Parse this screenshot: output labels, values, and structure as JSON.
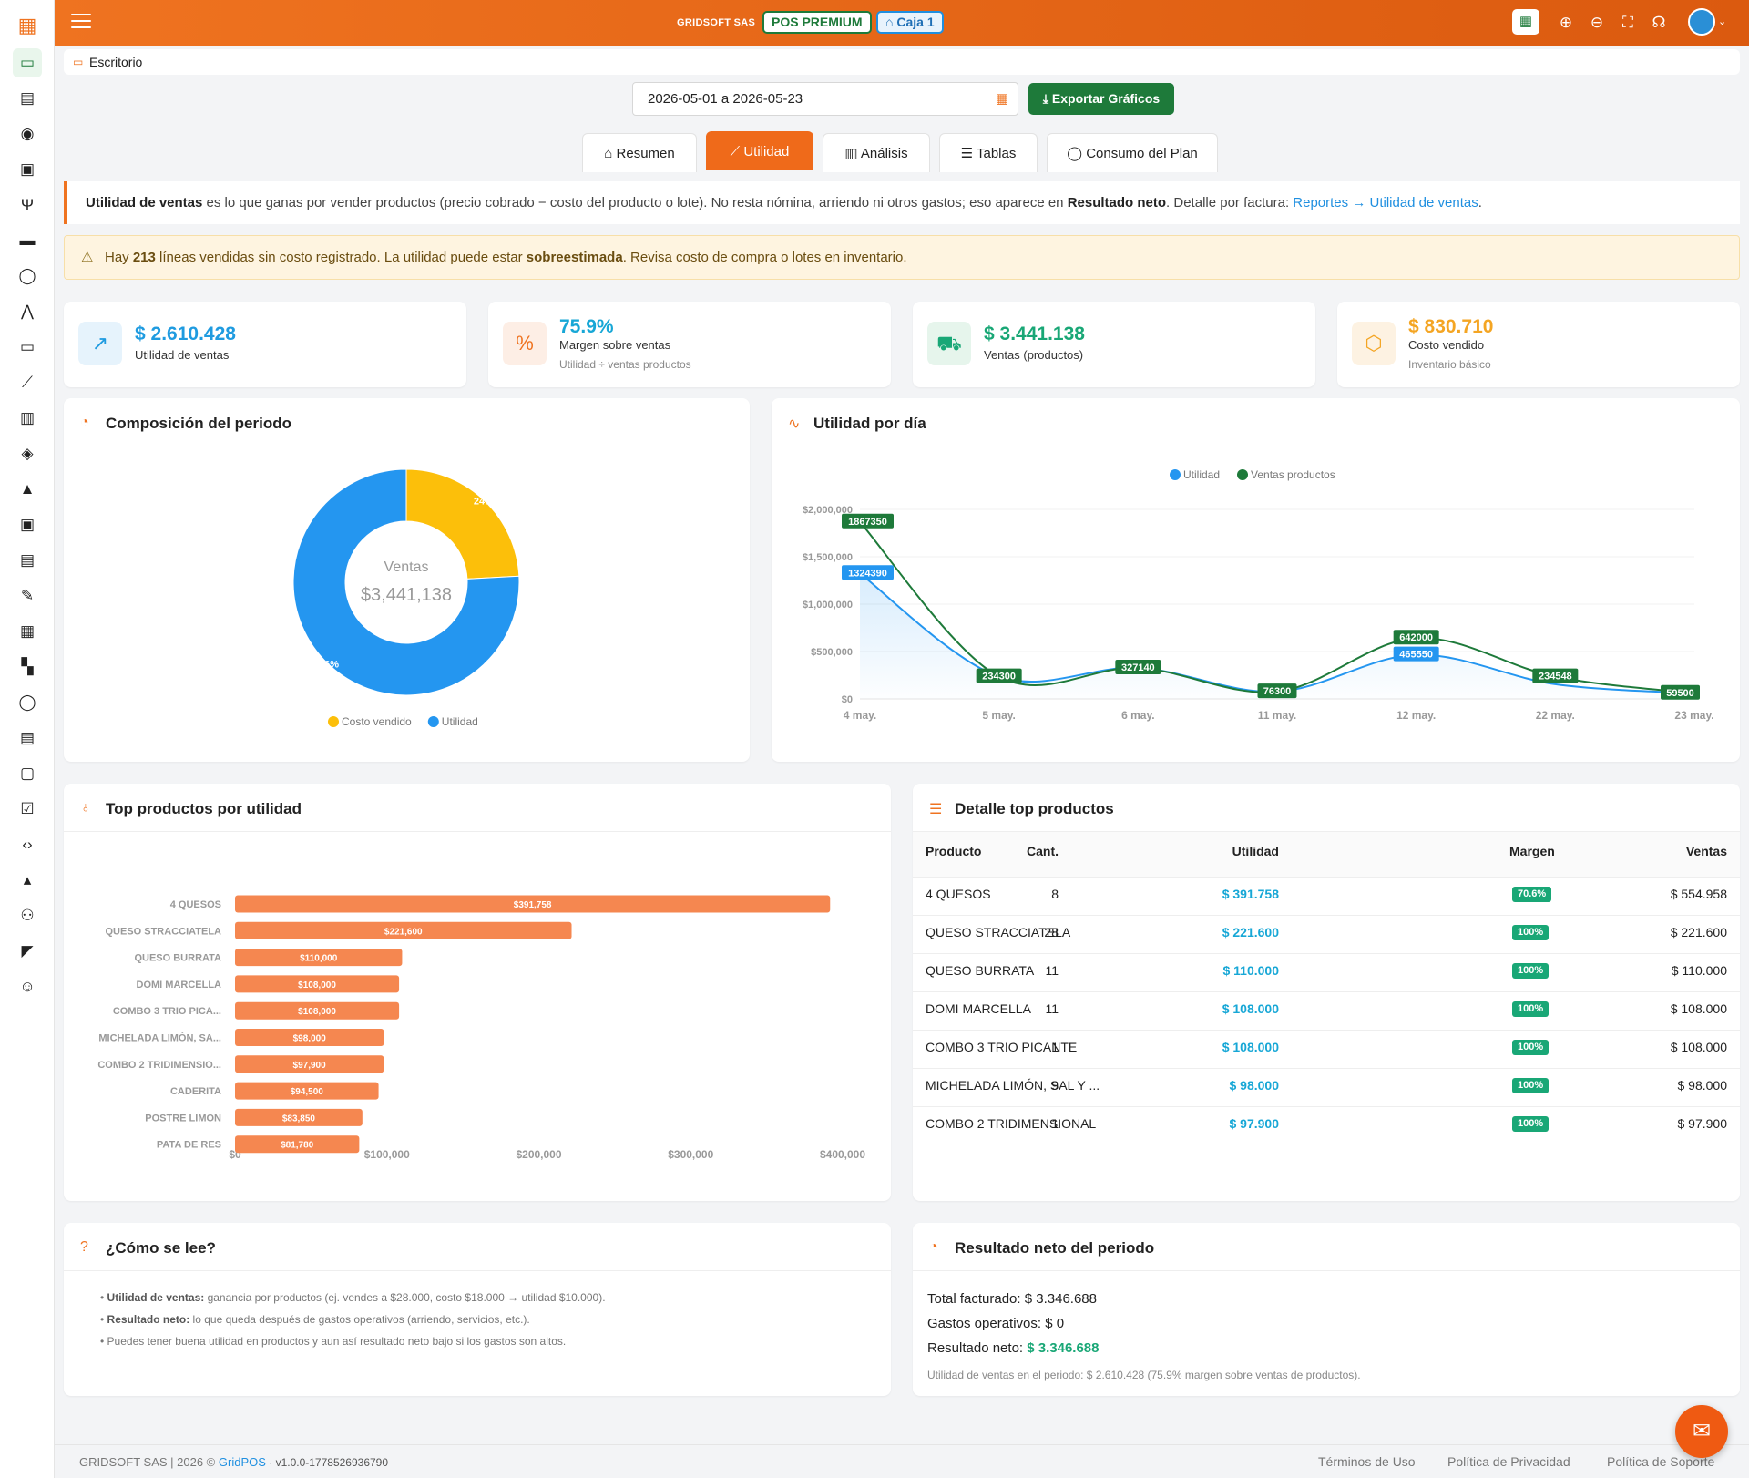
{
  "topbar": {
    "company": "GRIDSOFT SAS",
    "plan_badge": "POS PREMIUM",
    "register_badge": "Caja 1"
  },
  "breadcrumb": {
    "label": "Escritorio"
  },
  "filters": {
    "date_range": "2026-05-01 a 2026-05-23",
    "export_label": "Exportar Gráficos"
  },
  "tabs": [
    {
      "label": "Resumen"
    },
    {
      "label": "Utilidad"
    },
    {
      "label": "Análisis"
    },
    {
      "label": "Tablas"
    },
    {
      "label": "Consumo del Plan"
    }
  ],
  "info": {
    "term": "Utilidad de ventas",
    "text1": " es lo que ganas por vender productos (precio cobrado − costo del producto o lote). No resta nómina, arriendo ni otros gastos; eso aparece en ",
    "term2": "Resultado neto",
    "text2": ". Detalle por factura: ",
    "link": "Reportes → Utilidad de ventas",
    "text3": "."
  },
  "warning": {
    "text1": "Hay ",
    "count": "213",
    "text2": " líneas vendidas sin costo registrado. La utilidad puede estar ",
    "term": "sobreestimada",
    "text3": ". Revisa costo de compra o lotes en inventario."
  },
  "kpis": [
    {
      "value": "$ 2.610.428",
      "label": "Utilidad de ventas",
      "sub": "",
      "color": "#1f9be0",
      "bg": "#e6f3fc",
      "icon": "trend-up-icon"
    },
    {
      "value": "75.9%",
      "label": "Margen sobre ventas",
      "sub": "Utilidad ÷ ventas productos",
      "color": "#17a7d6",
      "bg": "#fdeee5",
      "icon": "percent-icon"
    },
    {
      "value": "$ 3.441.138",
      "label": "Ventas (productos)",
      "sub": "",
      "color": "#19a776",
      "bg": "#e6f5ec",
      "icon": "cart-icon"
    },
    {
      "value": "$ 830.710",
      "label": "Costo vendido",
      "sub": "Inventario básico",
      "color": "#f4a523",
      "bg": "#fdf2e2",
      "icon": "box-icon"
    }
  ],
  "composition": {
    "title": "Composición del periodo",
    "center_label": "Ventas",
    "center_value": "$3,441,138",
    "legend": [
      {
        "name": "Costo vendido",
        "color": "#fcbf0a"
      },
      {
        "name": "Utilidad",
        "color": "#2496f0"
      }
    ],
    "slices": [
      {
        "name": "Costo vendido",
        "percent": 24,
        "label": "24%"
      },
      {
        "name": "Utilidad",
        "percent": 76,
        "label": "76%"
      }
    ]
  },
  "daily": {
    "title": "Utilidad por día",
    "legend": [
      {
        "name": "Utilidad",
        "color": "#2496f0"
      },
      {
        "name": "Ventas productos",
        "color": "#1e7a3a"
      }
    ]
  },
  "top_products": {
    "title": "Top productos por utilidad"
  },
  "detail": {
    "title": "Detalle top productos",
    "headers": {
      "product": "Producto",
      "qty": "Cant.",
      "util": "Utilidad",
      "margin": "Margen",
      "sales": "Ventas"
    },
    "rows": [
      {
        "product": "4 QUESOS",
        "qty": "8",
        "util": "$ 391.758",
        "margin": "70.6%",
        "sales": "$ 554.958"
      },
      {
        "product": "QUESO STRACCIATELA",
        "qty": "28",
        "util": "$ 221.600",
        "margin": "100%",
        "sales": "$ 221.600"
      },
      {
        "product": "QUESO BURRATA",
        "qty": "11",
        "util": "$ 110.000",
        "margin": "100%",
        "sales": "$ 110.000"
      },
      {
        "product": "DOMI MARCELLA",
        "qty": "11",
        "util": "$ 108.000",
        "margin": "100%",
        "sales": "$ 108.000"
      },
      {
        "product": "COMBO 3 TRIO PICANTE",
        "qty": "1",
        "util": "$ 108.000",
        "margin": "100%",
        "sales": "$ 108.000"
      },
      {
        "product": "MICHELADA LIMÓN, SAL Y ...",
        "qty": "9",
        "util": "$ 98.000",
        "margin": "100%",
        "sales": "$ 98.000"
      },
      {
        "product": "COMBO 2 TRIDIMENSIONAL",
        "qty": "1",
        "util": "$ 97.900",
        "margin": "100%",
        "sales": "$ 97.900"
      }
    ]
  },
  "howto": {
    "title": "¿Cómo se lee?",
    "items": [
      {
        "term": "Utilidad de ventas:",
        "text": " ganancia por productos (ej. vendes a $28.000, costo $18.000 → utilidad $10.000)."
      },
      {
        "term": "Resultado neto:",
        "text": " lo que queda después de gastos operativos (arriendo, servicios, etc.)."
      },
      {
        "term": "",
        "text": "Puedes tener buena utilidad en productos y aun así resultado neto bajo si los gastos son altos."
      }
    ]
  },
  "net": {
    "title": "Resultado neto del periodo",
    "billed_label": "Total facturado: ",
    "billed_value": "$ 3.346.688",
    "opex_label": "Gastos operativos: ",
    "opex_value": "$ 0",
    "net_label": "Resultado neto: ",
    "net_value": "$ 3.346.688",
    "note": "Utilidad de ventas en el periodo: $ 2.610.428 (75.9% margen sobre ventas de productos)."
  },
  "footer": {
    "left": "GRIDSOFT SAS | 2026 © ",
    "brand": "GridPOS",
    "version": " · v1.0.0-1778526936790",
    "links": [
      "Términos de Uso",
      "Política de Privacidad",
      "Política de Soporte"
    ]
  },
  "chart_data": [
    {
      "type": "pie",
      "center_label": "Ventas",
      "center_value": "$3,441,138",
      "categories": [
        "Costo vendido",
        "Utilidad"
      ],
      "values": [
        830710,
        2610428
      ],
      "percent_labels": [
        "24%",
        "76%"
      ],
      "colors": [
        "#fcbf0a",
        "#2496f0"
      ]
    },
    {
      "type": "area",
      "categories": [
        "4 may.",
        "5 may.",
        "6 may.",
        "11 may.",
        "12 may.",
        "22 may.",
        "23 may."
      ],
      "ylim": [
        0,
        2000000
      ],
      "yticks": [
        "$0",
        "$500,000",
        "$1,000,000",
        "$1,500,000",
        "$2,000,000"
      ],
      "series": [
        {
          "name": "Utilidad",
          "color": "#2496f0",
          "values": [
            1324390,
            234300,
            327140,
            76300,
            465550,
            154556,
            59500
          ],
          "labels": [
            "1324390",
            "",
            "",
            "",
            "465550",
            "",
            ""
          ]
        },
        {
          "name": "Ventas productos",
          "color": "#1e7a3a",
          "values": [
            1867350,
            234300,
            327140,
            76300,
            642000,
            234548,
            59500
          ],
          "labels": [
            "1867350",
            "234300",
            "327140",
            "76300",
            "642000",
            "234548",
            "59500"
          ]
        }
      ]
    },
    {
      "type": "bar",
      "orientation": "horizontal",
      "categories": [
        "4 QUESOS",
        "QUESO STRACCIATELA",
        "QUESO BURRATA",
        "DOMI MARCELLA",
        "COMBO 3 TRIO PICA...",
        "MICHELADA LIMÓN, SA...",
        "COMBO 2 TRIDIMENSIO...",
        "CADERITA",
        "POSTRE LIMON",
        "PATA DE RES"
      ],
      "values": [
        391758,
        221600,
        110000,
        108000,
        108000,
        98000,
        97900,
        94500,
        83850,
        81780
      ],
      "value_labels": [
        "$391,758",
        "$221,600",
        "$110,000",
        "$108,000",
        "$108,000",
        "$98,000",
        "$97,900",
        "$94,500",
        "$83,850",
        "$81,780"
      ],
      "xlim": [
        0,
        400000
      ],
      "xticks": [
        "$0",
        "$100,000",
        "$200,000",
        "$300,000",
        "$400,000"
      ],
      "color": "#f58750"
    }
  ]
}
